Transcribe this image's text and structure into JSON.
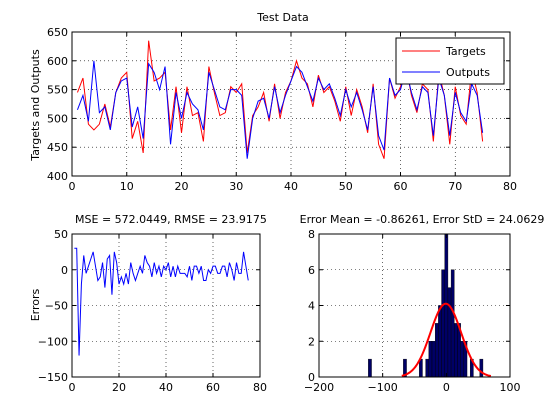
{
  "colors": {
    "targets": "#ff0000",
    "outputs": "#0000ff",
    "errors": "#0000ff",
    "hist_bars": "#000066",
    "fit_curve": "#ff0000"
  },
  "chart_data": [
    {
      "type": "line",
      "title": "Test Data",
      "xlabel": "",
      "ylabel": "Targets and Outputs",
      "xlim": [
        0,
        80
      ],
      "ylim": [
        400,
        650
      ],
      "xticks": [
        0,
        10,
        20,
        30,
        40,
        50,
        60,
        70,
        80
      ],
      "yticks": [
        400,
        450,
        500,
        550,
        600,
        650
      ],
      "grid": true,
      "legend_position": "top-right",
      "x": [
        1,
        2,
        3,
        4,
        5,
        6,
        7,
        8,
        9,
        10,
        11,
        12,
        13,
        14,
        15,
        16,
        17,
        18,
        19,
        20,
        21,
        22,
        23,
        24,
        25,
        26,
        27,
        28,
        29,
        30,
        31,
        32,
        33,
        34,
        35,
        36,
        37,
        38,
        39,
        40,
        41,
        42,
        43,
        44,
        45,
        46,
        47,
        48,
        49,
        50,
        51,
        52,
        53,
        54,
        55,
        56,
        57,
        58,
        59,
        60,
        61,
        62,
        63,
        64,
        65,
        66,
        67,
        68,
        69,
        70,
        71,
        72,
        73,
        74,
        75
      ],
      "series": [
        {
          "name": "Targets",
          "values": [
            545,
            570,
            490,
            480,
            490,
            525,
            485,
            545,
            570,
            580,
            465,
            495,
            440,
            635,
            565,
            570,
            580,
            480,
            555,
            475,
            555,
            505,
            510,
            460,
            590,
            545,
            505,
            510,
            555,
            545,
            560,
            440,
            505,
            520,
            545,
            495,
            560,
            500,
            545,
            565,
            600,
            570,
            560,
            520,
            575,
            545,
            555,
            530,
            495,
            555,
            505,
            550,
            520,
            475,
            560,
            455,
            430,
            570,
            535,
            555,
            590,
            540,
            510,
            560,
            550,
            460,
            580,
            540,
            455,
            555,
            505,
            490,
            585,
            545,
            460
          ]
        },
        {
          "name": "Outputs",
          "values": [
            515,
            540,
            495,
            600,
            510,
            520,
            480,
            545,
            565,
            570,
            485,
            520,
            465,
            595,
            580,
            550,
            590,
            455,
            545,
            500,
            545,
            525,
            515,
            480,
            580,
            550,
            520,
            515,
            550,
            550,
            540,
            430,
            500,
            530,
            535,
            500,
            555,
            510,
            540,
            565,
            590,
            580,
            555,
            530,
            570,
            550,
            560,
            535,
            505,
            550,
            520,
            545,
            515,
            480,
            555,
            470,
            445,
            570,
            540,
            550,
            585,
            545,
            515,
            555,
            545,
            470,
            570,
            540,
            470,
            545,
            510,
            495,
            560,
            540,
            475
          ]
        }
      ]
    },
    {
      "type": "line",
      "title": "MSE = 572.0449, RMSE = 23.9175",
      "xlabel": "",
      "ylabel": "Errors",
      "xlim": [
        0,
        80
      ],
      "ylim": [
        -150,
        50
      ],
      "xticks": [
        0,
        20,
        40,
        60,
        80
      ],
      "yticks": [
        -150,
        -100,
        -50,
        0,
        50
      ],
      "grid": true,
      "x": [
        1,
        2,
        3,
        4,
        5,
        6,
        7,
        8,
        9,
        10,
        11,
        12,
        13,
        14,
        15,
        16,
        17,
        18,
        19,
        20,
        21,
        22,
        23,
        24,
        25,
        26,
        27,
        28,
        29,
        30,
        31,
        32,
        33,
        34,
        35,
        36,
        37,
        38,
        39,
        40,
        41,
        42,
        43,
        44,
        45,
        46,
        47,
        48,
        49,
        50,
        51,
        52,
        53,
        54,
        55,
        56,
        57,
        58,
        59,
        60,
        61,
        62,
        63,
        64,
        65,
        66,
        67,
        68,
        69,
        70,
        71,
        72,
        73,
        74,
        75
      ],
      "series": [
        {
          "name": "",
          "values": [
            30,
            30,
            -120,
            -20,
            20,
            -5,
            5,
            15,
            25,
            5,
            -15,
            -10,
            10,
            -25,
            15,
            20,
            -35,
            25,
            10,
            -20,
            -10,
            -20,
            -5,
            -20,
            10,
            -5,
            -15,
            -5,
            5,
            -5,
            20,
            10,
            5,
            -10,
            10,
            -5,
            5,
            -10,
            5,
            0,
            10,
            -10,
            5,
            -10,
            5,
            -5,
            -5,
            -5,
            -10,
            5,
            -15,
            5,
            5,
            -5,
            5,
            -15,
            -15,
            0,
            -5,
            5,
            5,
            -5,
            -5,
            5,
            5,
            -10,
            10,
            0,
            -15,
            10,
            -5,
            -5,
            25,
            5,
            -15
          ]
        }
      ]
    },
    {
      "type": "bar",
      "title": "Error Mean = -0.86261, Error StD = 24.0629",
      "xlabel": "",
      "ylabel": "",
      "xlim": [
        -200,
        100
      ],
      "ylim": [
        0,
        8
      ],
      "xticks": [
        -200,
        -100,
        0,
        100
      ],
      "yticks": [
        0,
        2,
        4,
        6,
        8
      ],
      "grid": true,
      "bin_width": 5,
      "bins": [
        {
          "x": -120,
          "count": 1
        },
        {
          "x": -65,
          "count": 1
        },
        {
          "x": -40,
          "count": 1
        },
        {
          "x": -30,
          "count": 1
        },
        {
          "x": -25,
          "count": 2
        },
        {
          "x": -20,
          "count": 2
        },
        {
          "x": -15,
          "count": 3
        },
        {
          "x": -10,
          "count": 4
        },
        {
          "x": -5,
          "count": 6
        },
        {
          "x": 0,
          "count": 8
        },
        {
          "x": 5,
          "count": 5
        },
        {
          "x": 10,
          "count": 6
        },
        {
          "x": 15,
          "count": 3
        },
        {
          "x": 20,
          "count": 3
        },
        {
          "x": 25,
          "count": 2
        },
        {
          "x": 30,
          "count": 2
        },
        {
          "x": 40,
          "count": 1
        },
        {
          "x": 55,
          "count": 1
        }
      ],
      "fit_curve": {
        "type": "normal",
        "mean": -0.86261,
        "std": 24.0629,
        "peak": 4.1
      }
    }
  ]
}
